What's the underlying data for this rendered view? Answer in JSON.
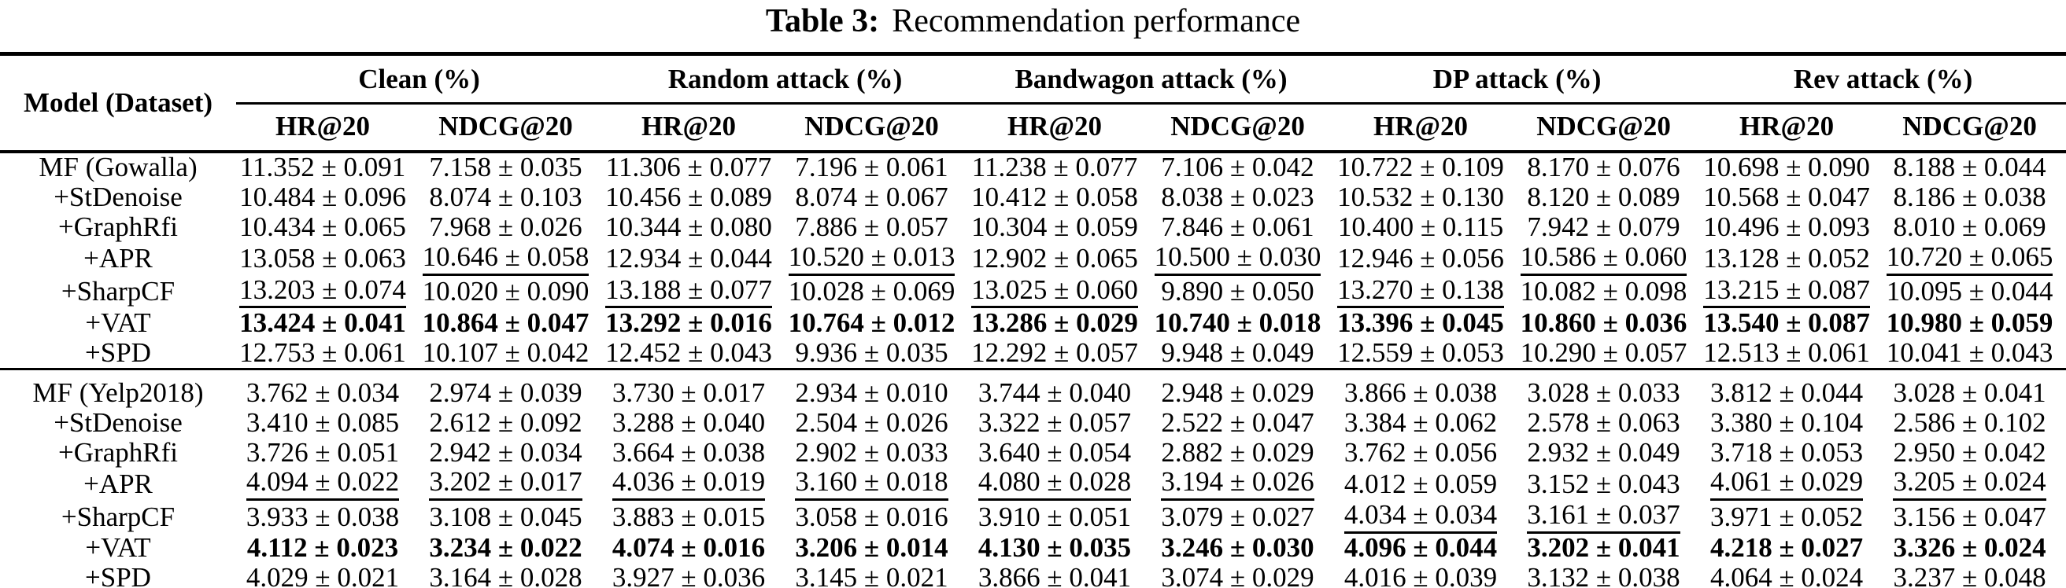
{
  "colors": {
    "text": "#000000",
    "background": "#ffffff"
  },
  "title": {
    "label": "Table 3:",
    "text": "Recommendation performance"
  },
  "table": {
    "corner_header": "Model (Dataset)",
    "group_headers": [
      "Clean (%)",
      "Random attack (%)",
      "Bandwagon attack (%)",
      "DP attack (%)",
      "Rev attack (%)"
    ],
    "sub_headers": [
      "HR@20",
      "NDCG@20"
    ],
    "rows": [
      {
        "model": "MF (Gowalla)",
        "values": [
          "11.352 ± 0.091",
          "7.158 ± 0.035",
          "11.306 ± 0.077",
          "7.196 ± 0.061",
          "11.238 ± 0.077",
          "7.106 ± 0.042",
          "10.722 ± 0.109",
          "8.170 ± 0.076",
          "10.698 ± 0.090",
          "8.188 ± 0.044"
        ],
        "bold": false,
        "underline_cols": [],
        "block_start": false
      },
      {
        "model": "+StDenoise",
        "values": [
          "10.484 ± 0.096",
          "8.074 ± 0.103",
          "10.456 ± 0.089",
          "8.074 ± 0.067",
          "10.412 ± 0.058",
          "8.038 ± 0.023",
          "10.532 ± 0.130",
          "8.120 ± 0.089",
          "10.568 ± 0.047",
          "8.186 ± 0.038"
        ],
        "bold": false,
        "underline_cols": [],
        "block_start": false
      },
      {
        "model": "+GraphRfi",
        "values": [
          "10.434 ± 0.065",
          "7.968 ± 0.026",
          "10.344 ± 0.080",
          "7.886 ± 0.057",
          "10.304 ± 0.059",
          "7.846 ± 0.061",
          "10.400 ± 0.115",
          "7.942 ± 0.079",
          "10.496 ± 0.093",
          "8.010 ± 0.069"
        ],
        "bold": false,
        "underline_cols": [],
        "block_start": false
      },
      {
        "model": "+APR",
        "values": [
          "13.058 ± 0.063",
          "10.646 ± 0.058",
          "12.934 ± 0.044",
          "10.520 ± 0.013",
          "12.902 ± 0.065",
          "10.500 ± 0.030",
          "12.946 ± 0.056",
          "10.586 ± 0.060",
          "13.128 ± 0.052",
          "10.720 ± 0.065"
        ],
        "bold": false,
        "underline_cols": [
          1,
          3,
          5,
          7,
          9
        ],
        "block_start": false
      },
      {
        "model": "+SharpCF",
        "values": [
          "13.203 ± 0.074",
          "10.020 ± 0.090",
          "13.188 ± 0.077",
          "10.028 ± 0.069",
          "13.025 ± 0.060",
          "9.890 ± 0.050",
          "13.270 ± 0.138",
          "10.082 ± 0.098",
          "13.215 ± 0.087",
          "10.095 ± 0.044"
        ],
        "bold": false,
        "underline_cols": [
          0,
          2,
          4,
          6,
          8
        ],
        "block_start": false
      },
      {
        "model": "+VAT",
        "values": [
          "13.424 ± 0.041",
          "10.864 ± 0.047",
          "13.292 ± 0.016",
          "10.764 ± 0.012",
          "13.286 ± 0.029",
          "10.740 ± 0.018",
          "13.396 ± 0.045",
          "10.860 ± 0.036",
          "13.540 ± 0.087",
          "10.980 ± 0.059"
        ],
        "bold": true,
        "underline_cols": [],
        "block_start": false
      },
      {
        "model": "+SPD",
        "values": [
          "12.753 ± 0.061",
          "10.107 ± 0.042",
          "12.452 ± 0.043",
          "9.936 ± 0.035",
          "12.292 ± 0.057",
          "9.948 ± 0.049",
          "12.559 ± 0.053",
          "10.290 ± 0.057",
          "12.513 ± 0.061",
          "10.041 ± 0.043"
        ],
        "bold": false,
        "underline_cols": [],
        "block_start": false
      },
      {
        "model": "MF (Yelp2018)",
        "values": [
          "3.762 ± 0.034",
          "2.974 ± 0.039",
          "3.730 ± 0.017",
          "2.934 ± 0.010",
          "3.744 ± 0.040",
          "2.948 ± 0.029",
          "3.866 ± 0.038",
          "3.028 ± 0.033",
          "3.812 ± 0.044",
          "3.028 ± 0.041"
        ],
        "bold": false,
        "underline_cols": [],
        "block_start": true
      },
      {
        "model": "+StDenoise",
        "values": [
          "3.410 ± 0.085",
          "2.612 ± 0.092",
          "3.288 ± 0.040",
          "2.504 ± 0.026",
          "3.322 ± 0.057",
          "2.522 ± 0.047",
          "3.384 ± 0.062",
          "2.578 ± 0.063",
          "3.380 ± 0.104",
          "2.586 ± 0.102"
        ],
        "bold": false,
        "underline_cols": [],
        "block_start": false
      },
      {
        "model": "+GraphRfi",
        "values": [
          "3.726 ± 0.051",
          "2.942 ± 0.034",
          "3.664 ± 0.038",
          "2.902 ± 0.033",
          "3.640 ± 0.054",
          "2.882 ± 0.029",
          "3.762 ± 0.056",
          "2.932 ± 0.049",
          "3.718 ± 0.053",
          "2.950 ± 0.042"
        ],
        "bold": false,
        "underline_cols": [],
        "block_start": false
      },
      {
        "model": "+APR",
        "values": [
          "4.094 ± 0.022",
          "3.202 ± 0.017",
          "4.036 ± 0.019",
          "3.160 ± 0.018",
          "4.080 ± 0.028",
          "3.194 ± 0.026",
          "4.012 ± 0.059",
          "3.152 ± 0.043",
          "4.061 ± 0.029",
          "3.205 ± 0.024"
        ],
        "bold": false,
        "underline_cols": [
          0,
          1,
          2,
          3,
          4,
          5,
          8,
          9
        ],
        "block_start": false
      },
      {
        "model": "+SharpCF",
        "values": [
          "3.933 ± 0.038",
          "3.108 ± 0.045",
          "3.883 ± 0.015",
          "3.058 ± 0.016",
          "3.910 ± 0.051",
          "3.079 ± 0.027",
          "4.034 ± 0.034",
          "3.161 ± 0.037",
          "3.971 ± 0.052",
          "3.156 ± 0.047"
        ],
        "bold": false,
        "underline_cols": [
          6,
          7
        ],
        "block_start": false
      },
      {
        "model": "+VAT",
        "values": [
          "4.112 ± 0.023",
          "3.234 ± 0.022",
          "4.074 ± 0.016",
          "3.206 ± 0.014",
          "4.130 ± 0.035",
          "3.246 ± 0.030",
          "4.096 ± 0.044",
          "3.202 ± 0.041",
          "4.218 ± 0.027",
          "3.326 ± 0.024"
        ],
        "bold": true,
        "underline_cols": [],
        "block_start": false
      },
      {
        "model": "+SPD",
        "values": [
          "4.029 ± 0.021",
          "3.164 ± 0.028",
          "3.927 ± 0.036",
          "3.145 ± 0.021",
          "3.866 ± 0.041",
          "3.074 ± 0.029",
          "4.016 ± 0.039",
          "3.132 ± 0.038",
          "4.064 ± 0.024",
          "3.237 ± 0.048"
        ],
        "bold": false,
        "underline_cols": [],
        "block_start": false
      }
    ]
  }
}
